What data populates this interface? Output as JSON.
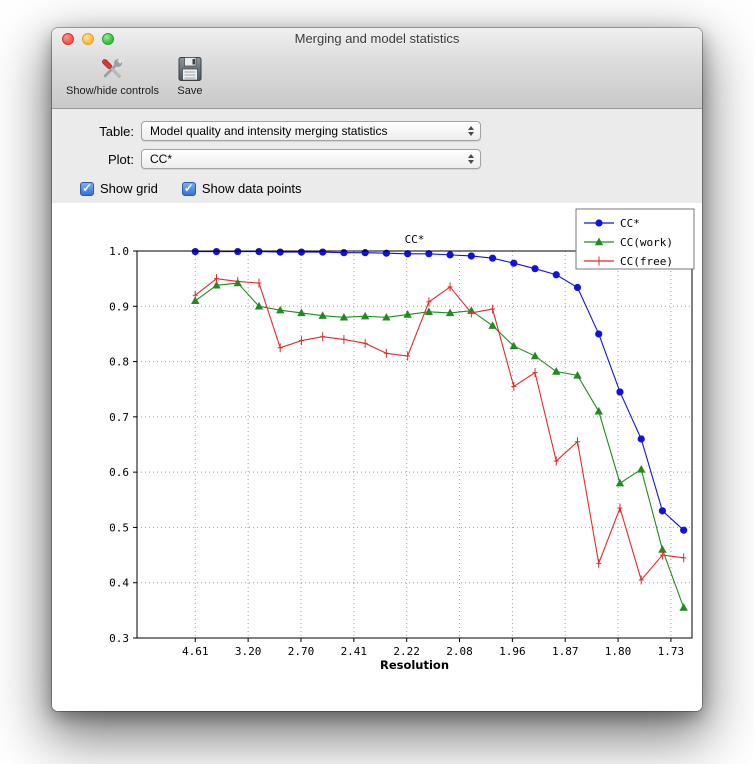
{
  "window": {
    "title": "Merging and model statistics",
    "toolbar": {
      "buttons": [
        {
          "label": "Show/hide controls",
          "icon": "tools-icon"
        },
        {
          "label": "Save",
          "icon": "floppy-disk-icon"
        }
      ]
    },
    "controls": {
      "table": {
        "label": "Table:",
        "value": "Model quality and intensity merging statistics"
      },
      "plot": {
        "label": "Plot:",
        "value": "CC*"
      },
      "checkboxes": [
        {
          "label": "Show grid",
          "checked": true
        },
        {
          "label": "Show data points",
          "checked": true
        }
      ]
    }
  },
  "chart_data": {
    "type": "line",
    "title": "CC*",
    "xlabel": "Resolution",
    "ylabel": "",
    "ylim": [
      0.3,
      1.0
    ],
    "yticks": [
      1.0,
      0.9,
      0.8,
      0.7,
      0.6,
      0.5,
      0.4,
      0.3
    ],
    "xticklabels": [
      "4.61",
      "3.20",
      "2.70",
      "2.41",
      "2.22",
      "2.08",
      "1.96",
      "1.87",
      "1.80",
      "1.73"
    ],
    "grid": true,
    "legend_position": "upper right",
    "series": [
      {
        "name": "CC*",
        "color": "#1212dd",
        "marker": "circle",
        "values": [
          0.999,
          0.999,
          0.999,
          0.999,
          0.998,
          0.998,
          0.998,
          0.997,
          0.997,
          0.996,
          0.995,
          0.995,
          0.993,
          0.991,
          0.987,
          0.978,
          0.968,
          0.957,
          0.934,
          0.85,
          0.745,
          0.66,
          0.53,
          0.495
        ]
      },
      {
        "name": "CC(work)",
        "color": "#1e8c1e",
        "marker": "triangle",
        "values": [
          0.91,
          0.938,
          0.942,
          0.9,
          0.893,
          0.888,
          0.883,
          0.88,
          0.882,
          0.88,
          0.885,
          0.89,
          0.888,
          0.892,
          0.865,
          0.828,
          0.81,
          0.782,
          0.775,
          0.71,
          0.58,
          0.605,
          0.46,
          0.355
        ]
      },
      {
        "name": "CC(free)",
        "color": "#e02b2b",
        "marker": "plus",
        "values": [
          0.92,
          0.95,
          0.945,
          0.942,
          0.825,
          0.838,
          0.845,
          0.84,
          0.833,
          0.815,
          0.81,
          0.908,
          0.935,
          0.888,
          0.895,
          0.755,
          0.78,
          0.62,
          0.655,
          0.435,
          0.535,
          0.405,
          0.45,
          0.445
        ]
      }
    ]
  }
}
